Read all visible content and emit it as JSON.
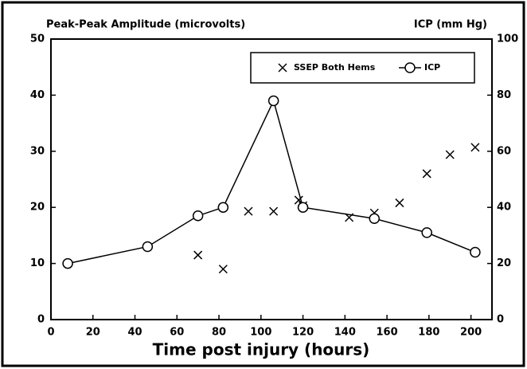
{
  "chart_data": {
    "type": "scatter",
    "ylabel": "Peak-Peak Amplitude (microvolts)",
    "y2label": "ICP (mm Hg)",
    "xlabel": "Time post injury (hours)",
    "xlim": [
      0,
      210
    ],
    "xticks": [
      0,
      20,
      40,
      60,
      80,
      100,
      120,
      140,
      160,
      180,
      200
    ],
    "ylim": [
      0,
      50
    ],
    "yticks": [
      0,
      10,
      20,
      30,
      40,
      50
    ],
    "y2lim": [
      0,
      100
    ],
    "y2ticks": [
      0,
      20,
      40,
      60,
      80,
      100
    ],
    "legend": "top right",
    "series": [
      {
        "name": "SSEP Both Hems",
        "color": "#000000",
        "marker": "x",
        "line": false,
        "x": [
          70,
          82,
          94,
          106,
          118,
          120,
          142,
          154,
          166,
          179,
          190,
          202
        ],
        "values": [
          11.5,
          9,
          19.3,
          19.3,
          21.3,
          20.3,
          18.2,
          19,
          20.8,
          26,
          29.4,
          30.7
        ]
      },
      {
        "name": "ICP",
        "color": "#000000",
        "marker": "o",
        "line": true,
        "axis": "y2",
        "x": [
          8,
          46,
          70,
          82,
          106,
          120,
          154,
          179,
          202
        ],
        "values": [
          20,
          26,
          37,
          40,
          78,
          40,
          36,
          31,
          24
        ]
      }
    ]
  }
}
